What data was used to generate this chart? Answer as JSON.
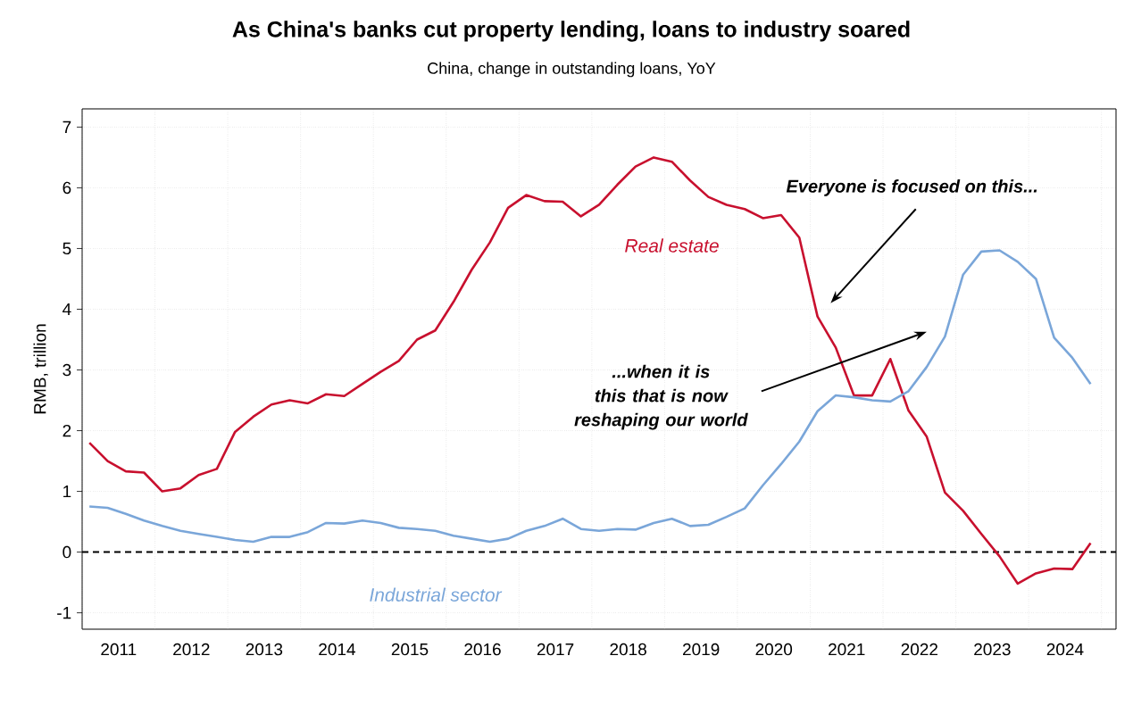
{
  "chart_data": {
    "type": "line",
    "title": "As China's banks cut property lending, loans to industry soared",
    "subtitle": "China, change in outstanding loans, YoY",
    "ylabel": "RMB, trillion",
    "x": [
      2011.1,
      2011.35,
      2011.6,
      2011.85,
      2012.1,
      2012.35,
      2012.6,
      2012.85,
      2013.1,
      2013.35,
      2013.6,
      2013.85,
      2014.1,
      2014.35,
      2014.6,
      2014.85,
      2015.1,
      2015.35,
      2015.6,
      2015.85,
      2016.1,
      2016.35,
      2016.6,
      2016.85,
      2017.1,
      2017.35,
      2017.6,
      2017.85,
      2018.1,
      2018.35,
      2018.6,
      2018.85,
      2019.1,
      2019.35,
      2019.6,
      2019.85,
      2020.1,
      2020.35,
      2020.6,
      2020.85,
      2021.1,
      2021.35,
      2021.6,
      2021.85,
      2022.1,
      2022.35,
      2022.6,
      2022.85,
      2023.1,
      2023.35,
      2023.6,
      2023.85,
      2024.1,
      2024.35,
      2024.6,
      2024.85
    ],
    "series": [
      {
        "name": "Real estate",
        "color": "#c8102e",
        "values": [
          1.8,
          1.5,
          1.33,
          1.31,
          1.0,
          1.05,
          1.27,
          1.37,
          1.98,
          2.23,
          2.43,
          2.5,
          2.45,
          2.6,
          2.57,
          2.77,
          2.97,
          3.15,
          3.5,
          3.65,
          4.12,
          4.65,
          5.1,
          5.67,
          5.88,
          5.78,
          5.77,
          5.53,
          5.72,
          6.05,
          6.35,
          6.5,
          6.43,
          6.12,
          5.85,
          5.72,
          5.65,
          5.5,
          5.55,
          5.18,
          3.88,
          3.37,
          2.58,
          2.58,
          3.18,
          2.33,
          1.9,
          0.98,
          0.68,
          0.3,
          -0.07,
          -0.52,
          -0.35,
          -0.27,
          -0.28,
          0.15
        ]
      },
      {
        "name": "Industrial sector",
        "color": "#7aa6d9",
        "values": [
          0.75,
          0.73,
          0.63,
          0.52,
          0.43,
          0.35,
          0.3,
          0.25,
          0.2,
          0.17,
          0.25,
          0.25,
          0.33,
          0.48,
          0.47,
          0.52,
          0.48,
          0.4,
          0.38,
          0.35,
          0.27,
          0.22,
          0.17,
          0.22,
          0.35,
          0.43,
          0.55,
          0.38,
          0.35,
          0.38,
          0.37,
          0.48,
          0.55,
          0.43,
          0.45,
          0.58,
          0.72,
          1.1,
          1.45,
          1.82,
          2.32,
          2.58,
          2.55,
          2.5,
          2.48,
          2.65,
          3.05,
          3.55,
          4.57,
          4.95,
          4.97,
          4.78,
          4.5,
          3.53,
          3.2,
          2.77
        ]
      }
    ],
    "xlim": [
      2011.0,
      2025.2
    ],
    "ylim": [
      -1.27,
      7.3
    ],
    "xticks": [
      {
        "value": 2011,
        "label": null
      },
      {
        "value": 2011.5,
        "label": "2011"
      },
      {
        "value": 2012,
        "label": null
      },
      {
        "value": 2012.5,
        "label": "2012"
      },
      {
        "value": 2013,
        "label": null
      },
      {
        "value": 2013.5,
        "label": "2013"
      },
      {
        "value": 2014,
        "label": null
      },
      {
        "value": 2014.5,
        "label": "2014"
      },
      {
        "value": 2015,
        "label": null
      },
      {
        "value": 2015.5,
        "label": "2015"
      },
      {
        "value": 2016,
        "label": null
      },
      {
        "value": 2016.5,
        "label": "2016"
      },
      {
        "value": 2017,
        "label": null
      },
      {
        "value": 2017.5,
        "label": "2017"
      },
      {
        "value": 2018,
        "label": null
      },
      {
        "value": 2018.5,
        "label": "2018"
      },
      {
        "value": 2019,
        "label": null
      },
      {
        "value": 2019.5,
        "label": "2019"
      },
      {
        "value": 2020,
        "label": null
      },
      {
        "value": 2020.5,
        "label": "2020"
      },
      {
        "value": 2021,
        "label": null
      },
      {
        "value": 2021.5,
        "label": "2021"
      },
      {
        "value": 2022,
        "label": null
      },
      {
        "value": 2022.5,
        "label": "2022"
      },
      {
        "value": 2023,
        "label": null
      },
      {
        "value": 2023.5,
        "label": "2023"
      },
      {
        "value": 2024,
        "label": null
      },
      {
        "value": 2024.5,
        "label": "2024"
      },
      {
        "value": 2025,
        "label": null
      }
    ],
    "yticks": [
      -1,
      0,
      1,
      2,
      3,
      4,
      5,
      6,
      7
    ],
    "grid": true,
    "line_style": "solid",
    "ref_lines": [
      {
        "axis": "y",
        "value": 0,
        "color": "#000000",
        "line_style": "dashed"
      }
    ],
    "annotations": [
      "Everyone is focused on this...",
      "...when it is this that is now reshaping our world"
    ]
  }
}
